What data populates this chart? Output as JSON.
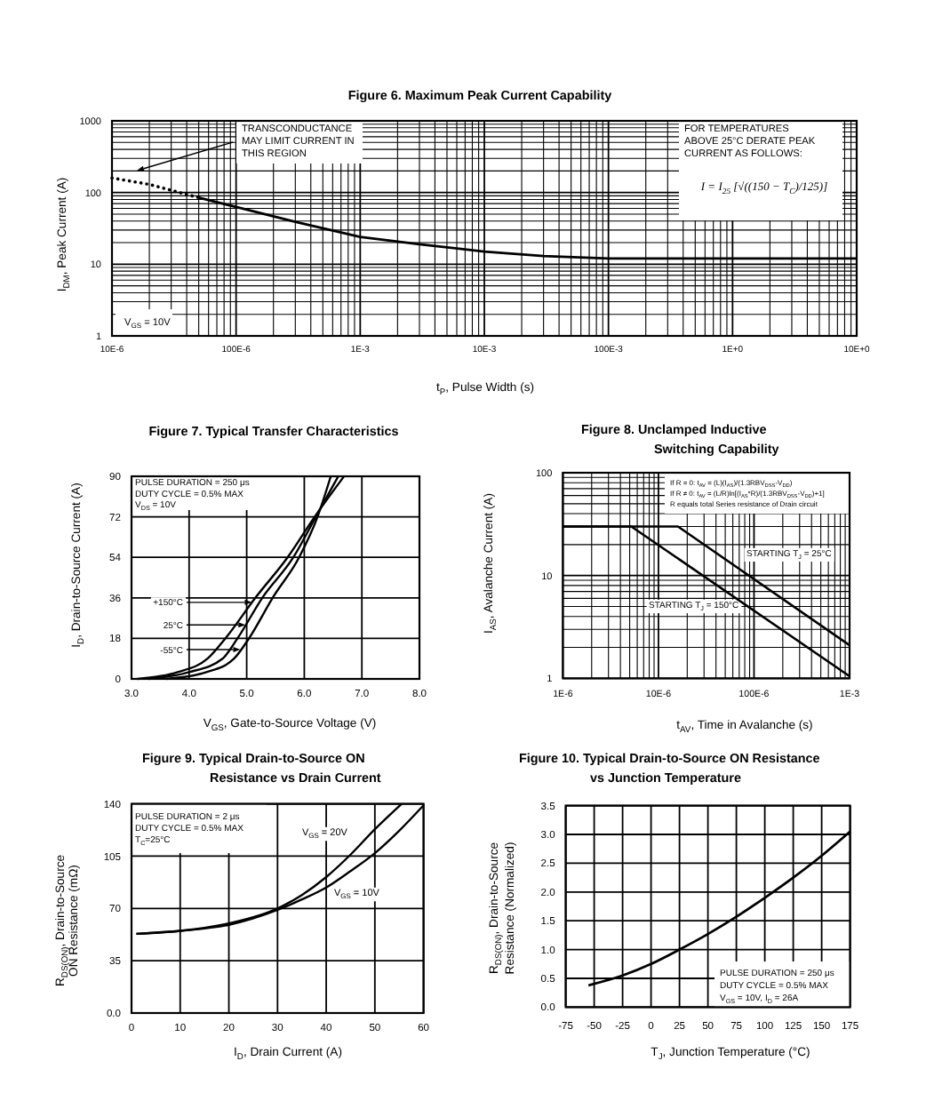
{
  "chart_data": [
    {
      "type": "line",
      "title": "Figure 6. Maximum Peak Current Capability",
      "xlabel": "t$_{P}$, Pulse Width (s)",
      "ylabel": "I$_{DM}$, Peak Current (A)",
      "log": "xy",
      "xlim": [
        1e-05,
        10
      ],
      "ylim": [
        1,
        1000
      ],
      "xticks": [
        {
          "value": 1e-05,
          "label": "10E-6"
        },
        {
          "value": 2e-05,
          "label": null
        },
        {
          "value": 3e-05,
          "label": null
        },
        {
          "value": 4e-05,
          "label": null
        },
        {
          "value": 5e-05,
          "label": null
        },
        {
          "value": 6e-05,
          "label": null
        },
        {
          "value": 7e-05,
          "label": null
        },
        {
          "value": 8e-05,
          "label": null
        },
        {
          "value": 9e-05,
          "label": null
        },
        {
          "value": 0.0001,
          "label": "100E-6"
        },
        {
          "value": 0.0002,
          "label": null
        },
        {
          "value": 0.0003,
          "label": null
        },
        {
          "value": 0.0004,
          "label": null
        },
        {
          "value": 0.0005,
          "label": null
        },
        {
          "value": 0.0006,
          "label": null
        },
        {
          "value": 0.0007,
          "label": null
        },
        {
          "value": 0.0008,
          "label": null
        },
        {
          "value": 0.0009,
          "label": null
        },
        {
          "value": 0.001,
          "label": "1E-3"
        },
        {
          "value": 0.002,
          "label": null
        },
        {
          "value": 0.003,
          "label": null
        },
        {
          "value": 0.004,
          "label": null
        },
        {
          "value": 0.005,
          "label": null
        },
        {
          "value": 0.006,
          "label": null
        },
        {
          "value": 0.007,
          "label": null
        },
        {
          "value": 0.008,
          "label": null
        },
        {
          "value": 0.009,
          "label": null
        },
        {
          "value": 0.01,
          "label": "10E-3"
        },
        {
          "value": 0.02,
          "label": null
        },
        {
          "value": 0.03,
          "label": null
        },
        {
          "value": 0.04,
          "label": null
        },
        {
          "value": 0.05,
          "label": null
        },
        {
          "value": 0.06,
          "label": null
        },
        {
          "value": 0.07,
          "label": null
        },
        {
          "value": 0.08,
          "label": null
        },
        {
          "value": 0.09,
          "label": null
        },
        {
          "value": 0.1,
          "label": "100E-3"
        },
        {
          "value": 0.2,
          "label": null
        },
        {
          "value": 0.3,
          "label": null
        },
        {
          "value": 0.4,
          "label": null
        },
        {
          "value": 0.5,
          "label": null
        },
        {
          "value": 0.6,
          "label": null
        },
        {
          "value": 0.7,
          "label": null
        },
        {
          "value": 0.8,
          "label": null
        },
        {
          "value": 0.9,
          "label": null
        },
        {
          "value": 1,
          "label": "1E+0"
        },
        {
          "value": 2,
          "label": null
        },
        {
          "value": 3,
          "label": null
        },
        {
          "value": 4,
          "label": null
        },
        {
          "value": 5,
          "label": null
        },
        {
          "value": 6,
          "label": null
        },
        {
          "value": 7,
          "label": null
        },
        {
          "value": 8,
          "label": null
        },
        {
          "value": 9,
          "label": null
        },
        {
          "value": 10,
          "label": "10E+0"
        }
      ],
      "yticks": [
        1,
        {
          "value": 2,
          "label": null
        },
        {
          "value": 3,
          "label": null
        },
        {
          "value": 4,
          "label": null
        },
        {
          "value": 5,
          "label": null
        },
        {
          "value": 6,
          "label": null
        },
        {
          "value": 7,
          "label": null
        },
        {
          "value": 8,
          "label": null
        },
        {
          "value": 9,
          "label": null
        },
        10,
        {
          "value": 20,
          "label": null
        },
        {
          "value": 30,
          "label": null
        },
        {
          "value": 40,
          "label": null
        },
        {
          "value": 50,
          "label": null
        },
        {
          "value": 60,
          "label": null
        },
        {
          "value": 70,
          "label": null
        },
        {
          "value": 80,
          "label": null
        },
        {
          "value": 90,
          "label": null
        },
        100,
        {
          "value": 200,
          "label": null
        },
        {
          "value": 300,
          "label": null
        },
        {
          "value": 400,
          "label": null
        },
        {
          "value": 500,
          "label": null
        },
        {
          "value": 600,
          "label": null
        },
        {
          "value": 700,
          "label": null
        },
        {
          "value": 800,
          "label": null
        },
        {
          "value": 900,
          "label": null
        },
        1000
      ],
      "grid": true,
      "series": [
        {
          "color": "#000000",
          "line_style": "dotted",
          "x": [
            1e-05,
            2e-05,
            3.5e-05,
            5e-05
          ],
          "values": [
            160,
            130,
            100,
            85
          ]
        },
        {
          "color": "#000000",
          "line_style": "solid",
          "x": [
            5e-05,
            0.0001,
            0.0003,
            0.001,
            0.003,
            0.01,
            0.03,
            0.1,
            1,
            10
          ],
          "values": [
            85,
            63,
            39,
            24,
            19,
            15,
            13,
            12,
            12,
            12
          ]
        }
      ],
      "annotations": [
        "TRANSCONDUCTANCE\nMAY LIMIT CURRENT IN\nTHIS REGION",
        "FOR TEMPERATURES\nABOVE 25°C DERATE PEAK\nCURRENT AS FOLLOWS:",
        "I = I$_{25}$ [√((150 − T$_{C}$)/125)]",
        "V$_{GS}$ = 10V"
      ]
    },
    {
      "type": "line",
      "title": "Figure 7. Typical Transfer Characteristics",
      "xlabel": "V$_{GS}$, Gate-to-Source Voltage (V)",
      "ylabel": "I$_{D}$, Drain-to-Source Current (A)",
      "xlim": [
        3,
        8
      ],
      "ylim": [
        0,
        90
      ],
      "xticks": [
        {
          "value": 3,
          "label": "3.0"
        },
        {
          "value": 4,
          "label": "4.0"
        },
        {
          "value": 5,
          "label": "5.0"
        },
        {
          "value": 6,
          "label": "6.0"
        },
        {
          "value": 7,
          "label": "7.0"
        },
        {
          "value": 8,
          "label": "8.0"
        }
      ],
      "yticks": [
        0,
        18,
        36,
        54,
        72,
        90
      ],
      "grid": true,
      "series": [
        {
          "color": "#000000",
          "x": [
            3.1,
            3.8,
            4.32,
            4.63,
            5.15,
            5.71,
            6.18,
            6.69
          ],
          "values": [
            0,
            3,
            9,
            18,
            36,
            54,
            72,
            90
          ]
        },
        {
          "color": "#000000",
          "x": [
            3.3,
            4.0,
            4.58,
            4.84,
            5.27,
            5.81,
            6.2,
            6.59
          ],
          "values": [
            0,
            3,
            9,
            18,
            36,
            54,
            72,
            90
          ]
        },
        {
          "color": "#000000",
          "x": [
            3.6,
            4.3,
            4.78,
            5.04,
            5.45,
            5.91,
            6.23,
            6.46
          ],
          "values": [
            0,
            3,
            9,
            18,
            36,
            54,
            72,
            90
          ]
        }
      ],
      "annotations": [
        "PULSE DURATION = 250 μs\nDUTY CYCLE = 0.5% MAX\nV$_{DS}$ = 10V",
        {
          "text": "+150°C",
          "x": 5.09,
          "y": 34
        },
        {
          "text": "25°C",
          "x": 4.98,
          "y": 24
        },
        {
          "text": "-55°C",
          "x": 4.89,
          "y": 13
        }
      ]
    },
    {
      "type": "line",
      "title": "Figure 8. Unclamped Inductive\nSwitching Capability",
      "xlabel": "t$_{AV}$, Time in Avalanche (s)",
      "ylabel": "I$_{AS}$, Avalanche Current (A)",
      "log": "xy",
      "xlim": [
        1e-06,
        0.001
      ],
      "ylim": [
        1,
        100
      ],
      "xticks": [
        {
          "value": 1e-06,
          "label": "1E-6"
        },
        {
          "value": 2e-06,
          "label": null
        },
        {
          "value": 3e-06,
          "label": null
        },
        {
          "value": 4e-06,
          "label": null
        },
        {
          "value": 5e-06,
          "label": null
        },
        {
          "value": 6e-06,
          "label": null
        },
        {
          "value": 7e-06,
          "label": null
        },
        {
          "value": 8e-06,
          "label": null
        },
        {
          "value": 9e-06,
          "label": null
        },
        {
          "value": 1e-05,
          "label": "10E-6"
        },
        {
          "value": 2e-05,
          "label": null
        },
        {
          "value": 3e-05,
          "label": null
        },
        {
          "value": 4e-05,
          "label": null
        },
        {
          "value": 5e-05,
          "label": null
        },
        {
          "value": 6e-05,
          "label": null
        },
        {
          "value": 7e-05,
          "label": null
        },
        {
          "value": 8e-05,
          "label": null
        },
        {
          "value": 9e-05,
          "label": null
        },
        {
          "value": 0.0001,
          "label": "100E-6"
        },
        {
          "value": 0.0002,
          "label": null
        },
        {
          "value": 0.0003,
          "label": null
        },
        {
          "value": 0.0004,
          "label": null
        },
        {
          "value": 0.0005,
          "label": null
        },
        {
          "value": 0.0006,
          "label": null
        },
        {
          "value": 0.0007,
          "label": null
        },
        {
          "value": 0.0008,
          "label": null
        },
        {
          "value": 0.0009,
          "label": null
        },
        {
          "value": 0.001,
          "label": "1E-3"
        }
      ],
      "yticks": [
        1,
        {
          "value": 2,
          "label": null
        },
        {
          "value": 3,
          "label": null
        },
        {
          "value": 4,
          "label": null
        },
        {
          "value": 5,
          "label": null
        },
        {
          "value": 6,
          "label": null
        },
        {
          "value": 7,
          "label": null
        },
        {
          "value": 8,
          "label": null
        },
        {
          "value": 9,
          "label": null
        },
        10,
        {
          "value": 20,
          "label": null
        },
        {
          "value": 30,
          "label": null
        },
        {
          "value": 40,
          "label": null
        },
        {
          "value": 50,
          "label": null
        },
        {
          "value": 60,
          "label": null
        },
        {
          "value": 70,
          "label": null
        },
        {
          "value": 80,
          "label": null
        },
        {
          "value": 90,
          "label": null
        },
        100
      ],
      "grid": true,
      "series": [
        {
          "name": "STARTING T$_{J}$ = 25°C",
          "color": "#000000",
          "x": [
            1e-06,
            1.6e-05,
            0.001
          ],
          "values": [
            30,
            30,
            2.1
          ]
        },
        {
          "name": "STARTING T$_{J}$ = 150°C",
          "color": "#000000",
          "x": [
            1e-06,
            5.2e-06,
            0.001
          ],
          "values": [
            30,
            30,
            1.05
          ]
        }
      ],
      "annotations": [
        "If R = 0: t$_{AV}$ = (L)(I$_{AS}$)/(1.3RBV$_{DSS}$-V$_{DD}$)\nIf R ≠ 0: t$_{AV}$ = (L/R)ln[(I$_{AS}$*R)/(1.3RBV$_{DSS}$-V$_{DD}$)+1]\nR equals total Series resistance of Drain circuit"
      ]
    },
    {
      "type": "line",
      "title": "Figure 9. Typical Drain-to-Source ON\nResistance vs Drain Current",
      "xlabel": "I$_{D}$, Drain Current (A)",
      "ylabel": "R$_{DS(ON)}$, Drain-to-Source\nON Resistance (mΩ)",
      "xlim": [
        0,
        60
      ],
      "ylim": [
        0,
        140
      ],
      "xticks": [
        0,
        10,
        20,
        30,
        40,
        50,
        60
      ],
      "yticks": [
        {
          "value": 0,
          "label": "0.0"
        },
        35,
        70,
        105,
        140
      ],
      "grid": true,
      "series": [
        {
          "name": "V$_{GS}$ = 20V",
          "color": "#000000",
          "x": [
            1,
            10,
            20,
            30,
            35,
            40,
            45,
            50,
            55.5
          ],
          "values": [
            53,
            55,
            60,
            70,
            79,
            91,
            106,
            123,
            140
          ]
        },
        {
          "name": "V$_{GS}$ = 10V",
          "color": "#000000",
          "x": [
            1,
            10,
            20,
            30,
            35,
            40,
            45,
            50,
            55,
            60
          ],
          "values": [
            53,
            55,
            59,
            69,
            76,
            84,
            95,
            107,
            122,
            139
          ]
        }
      ],
      "annotations": [
        "PULSE DURATION = 2 μs\nDUTY CYCLE = 0.5% MAX\nT$_{C}$=25°C"
      ]
    },
    {
      "type": "line",
      "title": "Figure 10. Typical Drain-to-Source ON Resistance\nvs Junction Temperature",
      "xlabel": "T$_{J}$, Junction Temperature (°C)",
      "ylabel": "R$_{DS(ON)}$, Drain-to-Source\nResistance (Normalized)",
      "xlim": [
        -75,
        175
      ],
      "ylim": [
        0,
        3.5
      ],
      "xticks": [
        -75,
        -50,
        -25,
        0,
        25,
        50,
        75,
        100,
        125,
        150,
        175
      ],
      "yticks": [
        {
          "value": 0,
          "label": "0.0"
        },
        {
          "value": 0.5,
          "label": "0.5"
        },
        {
          "value": 1,
          "label": "1.0"
        },
        {
          "value": 1.5,
          "label": "1.5"
        },
        {
          "value": 2,
          "label": "2.0"
        },
        {
          "value": 2.5,
          "label": "2.5"
        },
        {
          "value": 3,
          "label": "3.0"
        },
        {
          "value": 3.5,
          "label": "3.5"
        }
      ],
      "grid": true,
      "series": [
        {
          "color": "#000000",
          "x": [
            -55,
            -25,
            0,
            25,
            50,
            75,
            100,
            125,
            150,
            175
          ],
          "values": [
            0.38,
            0.55,
            0.75,
            1.0,
            1.27,
            1.57,
            1.9,
            2.25,
            2.63,
            3.05
          ]
        }
      ],
      "annotations": [
        "PULSE DURATION = 250 μs\nDUTY CYCLE = 0.5% MAX\nV$_{GS}$ = 10V, I$_{D}$ = 26A"
      ]
    }
  ]
}
